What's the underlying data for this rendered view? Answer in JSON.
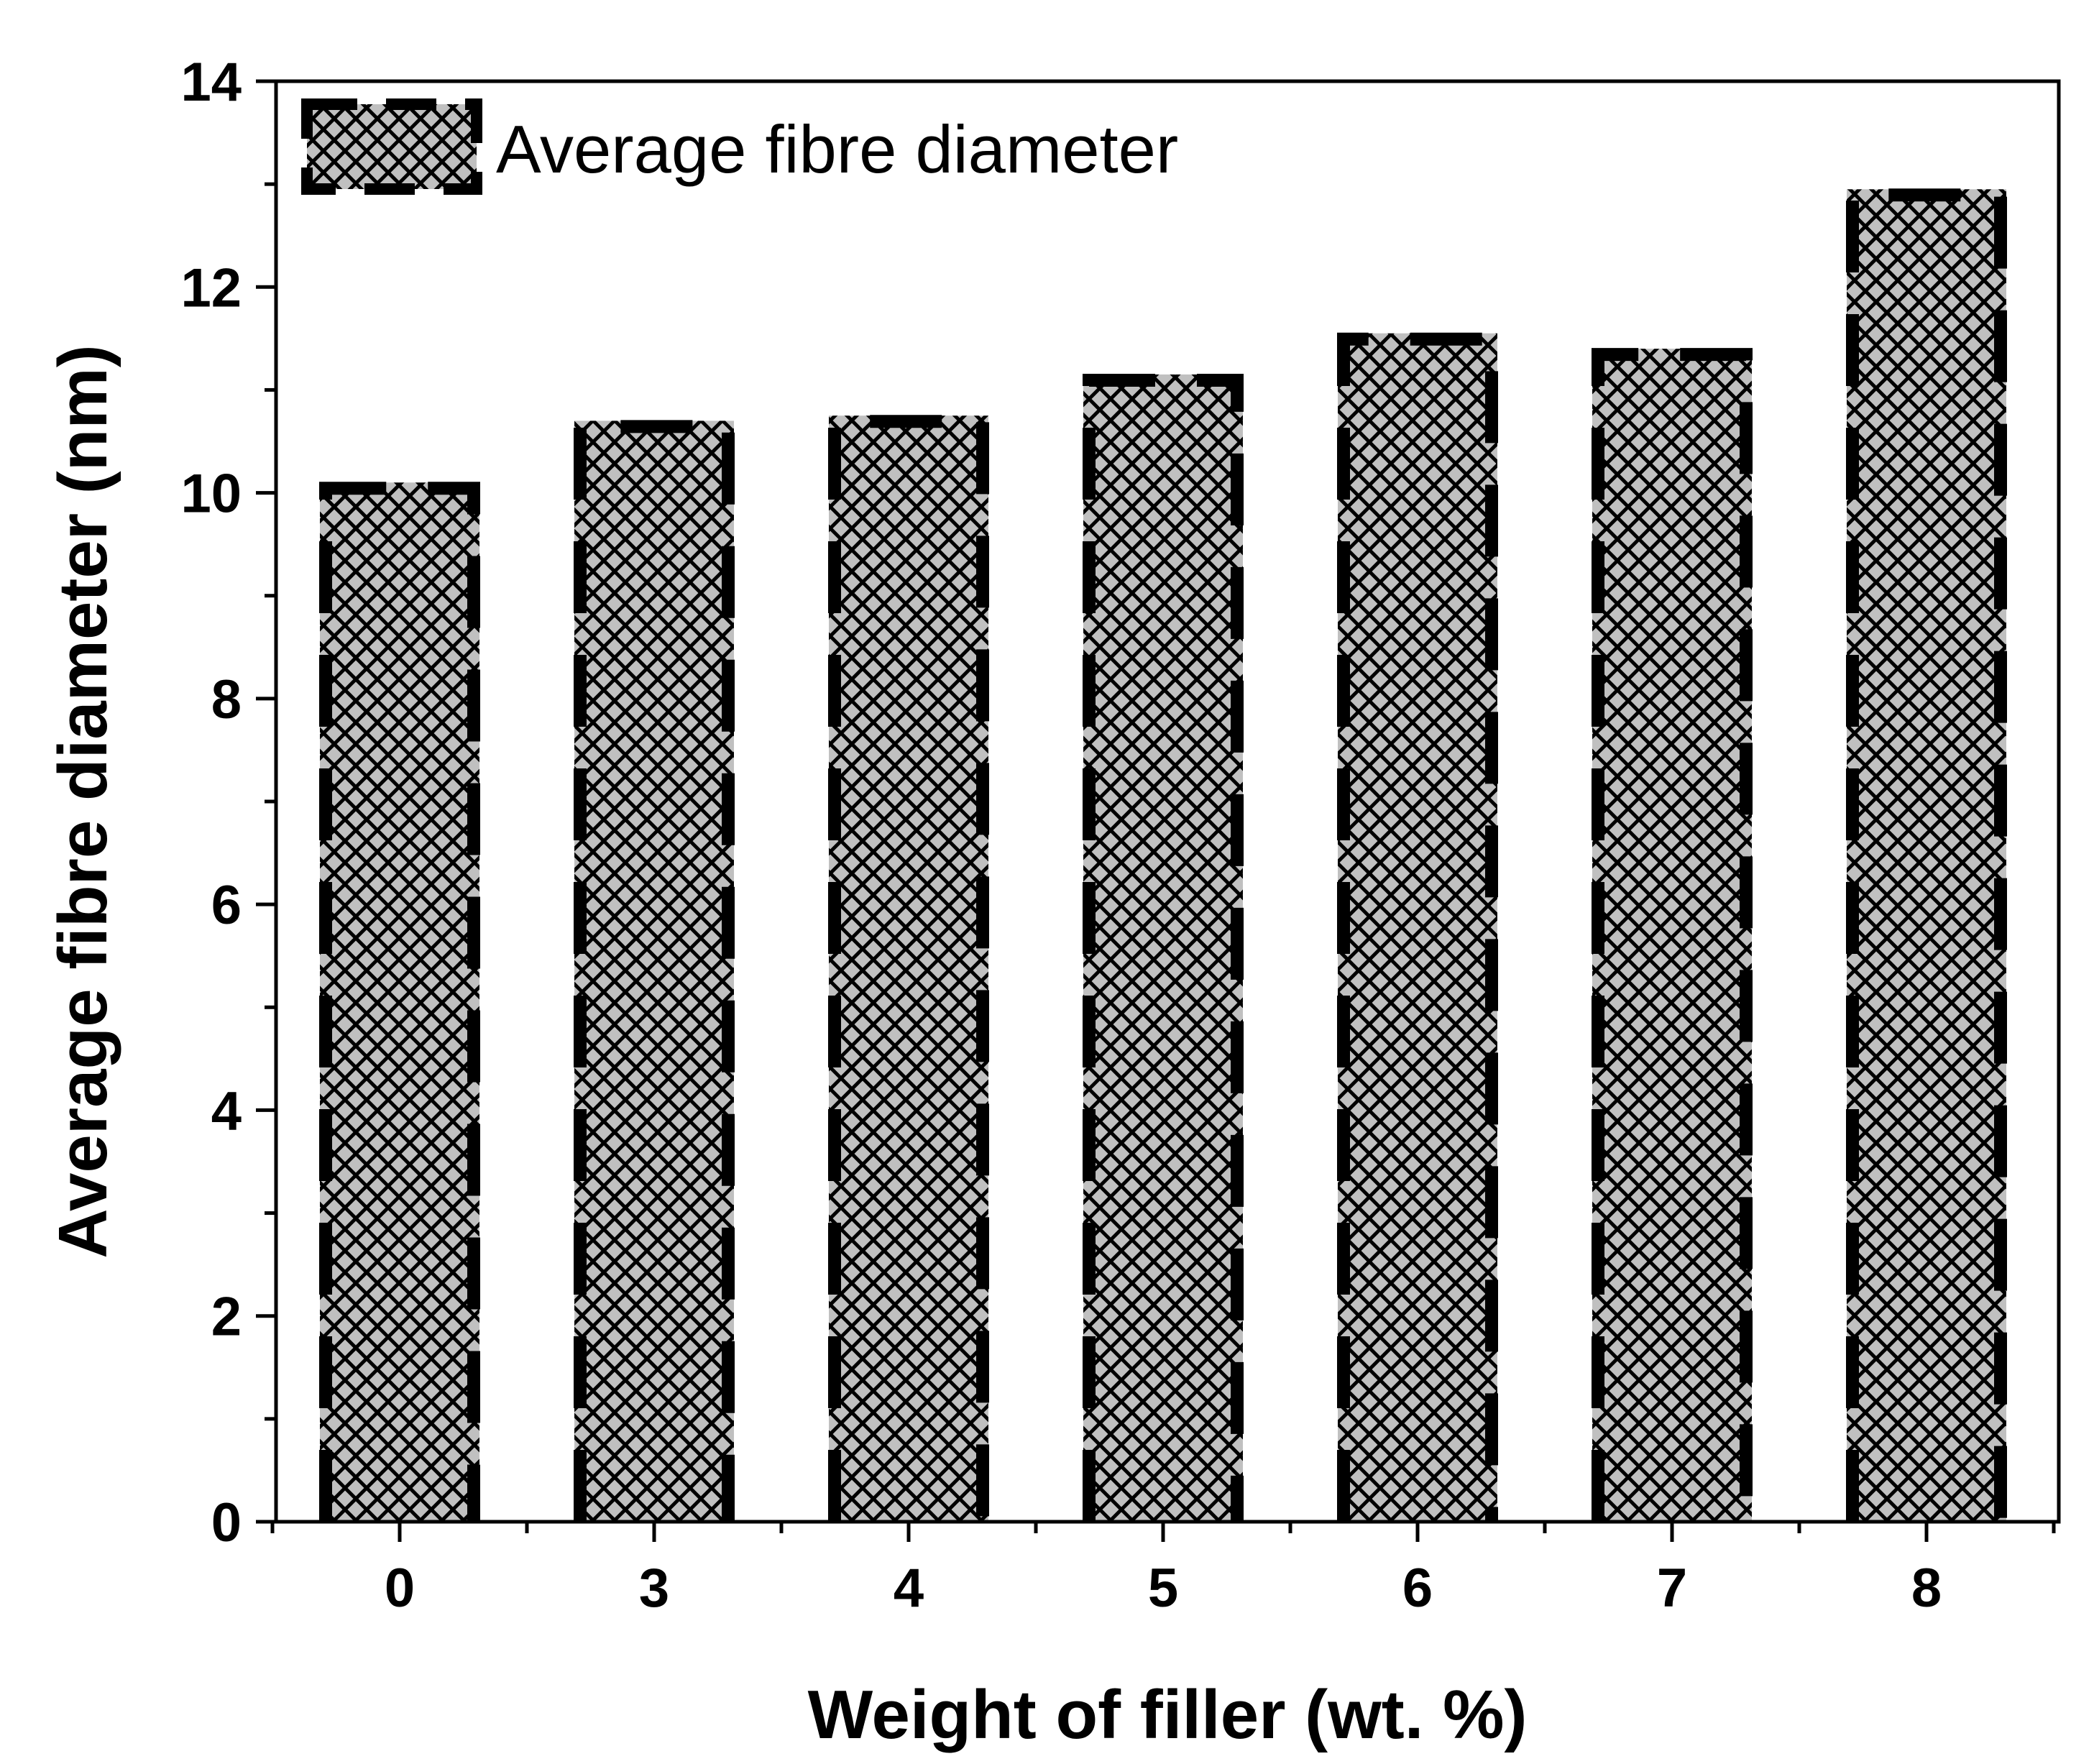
{
  "chart_data": {
    "type": "bar",
    "title": "",
    "xlabel": "Weight of filler (wt. %)",
    "ylabel": "Average fibre diameter (nm)",
    "categories": [
      "0",
      "3",
      "4",
      "5",
      "6",
      "7",
      "8"
    ],
    "series": [
      {
        "name": "Average fibre diameter",
        "values": [
          10.1,
          10.7,
          10.75,
          11.15,
          11.55,
          11.4,
          12.95
        ]
      }
    ],
    "ylim": [
      0,
      14
    ],
    "yticks": [
      "0",
      "2",
      "4",
      "6",
      "8",
      "10",
      "12",
      "14"
    ],
    "grid": false,
    "legend_position": "top-left",
    "colors": {
      "bar_fill": "#c0c0c0",
      "hatch": "#000000",
      "outline": "#000000"
    },
    "bar_pattern": "cross-hatch",
    "bar_outline_style": "dashed"
  }
}
